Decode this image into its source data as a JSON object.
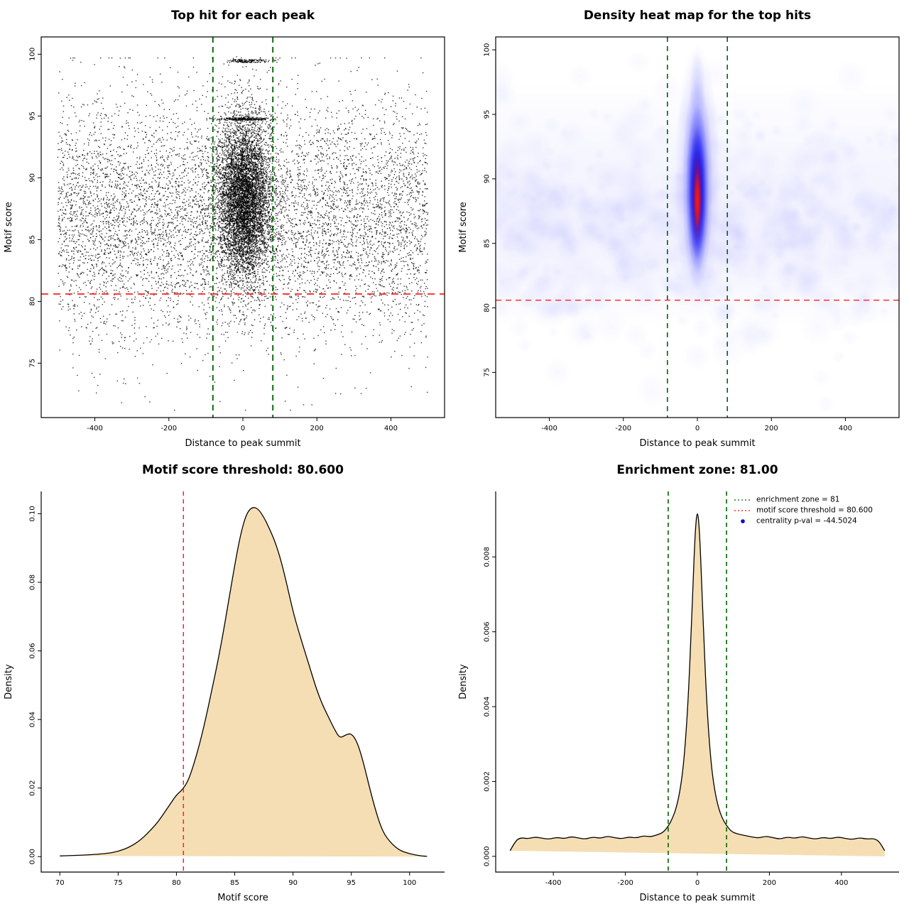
{
  "colors": {
    "red_line": "#ff2020",
    "green_line": "#006400",
    "area_fill": "#f5deb3",
    "heat_blue": "#0000ee",
    "heat_red": "#ff1a00",
    "point_blue": "#0000cc",
    "points": "#000000"
  },
  "chart_data": [
    {
      "type": "scatter",
      "title": "Top hit for each peak",
      "xlabel": "Distance to peak summit",
      "ylabel": "Motif score",
      "xlim": [
        -545,
        545
      ],
      "ylim": [
        70.6,
        101.4
      ],
      "xticks": [
        -400,
        -200,
        0,
        200,
        400
      ],
      "xtick_labels": [
        "-400",
        "-200",
        "0",
        "200",
        "400"
      ],
      "yticks": [
        75,
        80,
        85,
        90,
        95,
        100
      ],
      "ytick_labels": [
        "75",
        "80",
        "85",
        "90",
        "95",
        "100"
      ],
      "box": true,
      "point": {
        "color": "#000000",
        "size": 1.4,
        "alpha": 0.8
      },
      "seed": 11,
      "distribution": {
        "background": {
          "n": 7200,
          "x_min": -500,
          "x_max": 500,
          "y_mean": 86.8,
          "y_sd": 4.8,
          "y_min": 71.2,
          "y_max": 99.7
        },
        "cluster": {
          "n": 6200,
          "x_mean": 3,
          "x_sd": 36,
          "y_mean": 88.3,
          "y_sd": 3.3,
          "y_min": 77.5,
          "y_max": 99.8
        },
        "bands": [
          {
            "n": 160,
            "y": 99.45,
            "y_jit": 0.12,
            "x_mean": 15,
            "x_sd": 28
          },
          {
            "n": 240,
            "y": 94.75,
            "y_jit": 0.1,
            "x_mean": 5,
            "x_sd": 40
          }
        ]
      },
      "hline": {
        "y": 80.6,
        "color": "#ff2020",
        "dash": [
          10,
          7
        ],
        "width": 1.7
      },
      "vlines": [
        {
          "x": -81,
          "color": "#006400",
          "dash": [
            8,
            6
          ],
          "width": 1.9
        },
        {
          "x": 81,
          "color": "#006400",
          "dash": [
            8,
            6
          ],
          "width": 1.9
        }
      ]
    },
    {
      "type": "heatmap",
      "title": "Density heat map for the top hits",
      "xlabel": "Distance to peak summit",
      "ylabel": "Motif score",
      "xlim": [
        -545,
        545
      ],
      "ylim": [
        71.5,
        101
      ],
      "xticks": [
        -400,
        -200,
        0,
        200,
        400
      ],
      "xtick_labels": [
        "-400",
        "-200",
        "0",
        "200",
        "400"
      ],
      "yticks": [
        75,
        80,
        85,
        90,
        95,
        100
      ],
      "ytick_labels": [
        "75",
        "80",
        "85",
        "90",
        "95",
        "100"
      ],
      "box": true,
      "heat": {
        "band": {
          "seed": 7,
          "n": 480,
          "y_mean": 86.6,
          "y_sd": 4.4,
          "r_min": 7,
          "r_max": 26,
          "color": "#6060ff",
          "alpha": 0.045,
          "base_alpha": 0.06,
          "y_top": 97.5,
          "y_bottom": 78.5
        },
        "ellipses": [
          {
            "cx": 0,
            "cy": 90.0,
            "sx": 62,
            "sy": 10.5,
            "color": "#5050ff",
            "alpha": 0.28
          },
          {
            "cx": 0,
            "cy": 89.5,
            "sx": 42,
            "sy": 8.2,
            "color": "#2828ff",
            "alpha": 0.5
          },
          {
            "cx": 0,
            "cy": 89.2,
            "sx": 31,
            "sy": 6.6,
            "color": "#0a0aee",
            "alpha": 0.8
          },
          {
            "cx": 0,
            "cy": 88.9,
            "sx": 23,
            "sy": 5.2,
            "color": "#0000dd",
            "alpha": 0.92
          },
          {
            "cx": 0,
            "cy": 88.6,
            "sx": 14,
            "sy": 3.5,
            "color": "#dd1133",
            "alpha": 0.88
          },
          {
            "cx": 0,
            "cy": 88.3,
            "sx": 9.5,
            "sy": 2.3,
            "color": "#ff1a00",
            "alpha": 0.95
          },
          {
            "cx": 0,
            "cy": 96.8,
            "sx": 22,
            "sy": 3.2,
            "color": "#7070ff",
            "alpha": 0.22
          }
        ]
      },
      "hline": {
        "y": 80.6,
        "color": "#ff2020",
        "dash": [
          8,
          6
        ],
        "width": 1.4
      },
      "vlines": [
        {
          "x": -81,
          "color": "#006400",
          "dash": [
            7,
            6
          ],
          "width": 1.6
        },
        {
          "x": 81,
          "color": "#006400",
          "dash": [
            7,
            6
          ],
          "width": 1.6
        }
      ]
    },
    {
      "type": "area",
      "title": "Motif score threshold: 80.600",
      "xlabel": "Motif score",
      "ylabel": "Density",
      "xlim": [
        68.4,
        103
      ],
      "ylim": [
        -0.0045,
        0.1065
      ],
      "xticks": [
        70,
        75,
        80,
        85,
        90,
        95,
        100
      ],
      "xtick_labels": [
        "70",
        "75",
        "80",
        "85",
        "90",
        "95",
        "100"
      ],
      "yticks": [
        0,
        0.02,
        0.04,
        0.06,
        0.08,
        0.1
      ],
      "ytick_labels": [
        "0.00",
        "0.02",
        "0.04",
        "0.06",
        "0.08",
        "0.10"
      ],
      "box": false,
      "fill": "#f5deb3",
      "line_color": "#000000",
      "points": {
        "x": [
          70,
          72,
          74,
          75,
          76,
          77,
          78,
          78.5,
          79,
          79.5,
          80,
          80.5,
          81,
          81.5,
          82,
          82.5,
          83,
          83.5,
          84,
          84.5,
          85,
          85.5,
          86,
          86.5,
          87,
          87.5,
          88,
          88.5,
          89,
          89.5,
          90,
          90.5,
          91,
          91.5,
          92,
          92.5,
          93,
          93.5,
          94,
          94.5,
          95,
          95.5,
          96,
          96.5,
          97,
          97.5,
          98,
          99,
          100,
          101,
          101.5
        ],
        "y": [
          0.0002,
          0.0004,
          0.0009,
          0.0015,
          0.0028,
          0.005,
          0.0085,
          0.0105,
          0.013,
          0.0155,
          0.018,
          0.0195,
          0.022,
          0.027,
          0.033,
          0.04,
          0.048,
          0.056,
          0.065,
          0.075,
          0.085,
          0.094,
          0.1,
          0.102,
          0.1015,
          0.099,
          0.0955,
          0.0915,
          0.086,
          0.079,
          0.0715,
          0.0655,
          0.06,
          0.0545,
          0.049,
          0.0445,
          0.041,
          0.0375,
          0.0345,
          0.0355,
          0.036,
          0.0335,
          0.028,
          0.021,
          0.0145,
          0.009,
          0.0055,
          0.002,
          0.0008,
          0.0002,
          0.0001
        ]
      },
      "vlines": [
        {
          "x": 80.6,
          "color": "#ff2020",
          "dash": [
            6,
            5
          ],
          "width": 1.5
        }
      ]
    },
    {
      "type": "area",
      "title": "Enrichment zone: 81.00",
      "xlabel": "Distance to peak summit",
      "ylabel": "Density",
      "xlim": [
        -560,
        560
      ],
      "ylim": [
        -0.00042,
        0.00975
      ],
      "xticks": [
        -400,
        -200,
        0,
        200,
        400
      ],
      "xtick_labels": [
        "-400",
        "-200",
        "0",
        "200",
        "400"
      ],
      "yticks": [
        0,
        0.002,
        0.004,
        0.006,
        0.008
      ],
      "ytick_labels": [
        "0.000",
        "0.002",
        "0.004",
        "0.006",
        "0.008"
      ],
      "box": false,
      "fill": "#f5deb3",
      "line_color": "#000000",
      "points": {
        "x": [
          -520,
          -505,
          -490,
          -470,
          -450,
          -430,
          -410,
          -390,
          -370,
          -350,
          -330,
          -310,
          -290,
          -270,
          -250,
          -230,
          -210,
          -190,
          -170,
          -150,
          -130,
          -110,
          -95,
          -81,
          -70,
          -60,
          -50,
          -40,
          -32,
          -25,
          -18,
          -12,
          -6,
          0,
          6,
          12,
          18,
          25,
          32,
          40,
          50,
          60,
          70,
          81,
          95,
          110,
          130,
          150,
          170,
          190,
          210,
          230,
          250,
          270,
          290,
          310,
          330,
          350,
          370,
          390,
          410,
          430,
          450,
          470,
          490,
          505,
          520
        ],
        "y": [
          0.00015,
          0.00042,
          0.0005,
          0.00047,
          0.00052,
          0.00048,
          0.00046,
          0.00051,
          0.00047,
          0.00053,
          0.00049,
          0.00046,
          0.00052,
          0.00048,
          0.00054,
          0.0005,
          0.00047,
          0.00052,
          0.00049,
          0.00055,
          0.00052,
          0.00058,
          0.00064,
          0.0008,
          0.001,
          0.00125,
          0.00165,
          0.0023,
          0.0032,
          0.0043,
          0.0058,
          0.0073,
          0.0087,
          0.0093,
          0.0087,
          0.0073,
          0.0058,
          0.0043,
          0.0032,
          0.0023,
          0.00165,
          0.00125,
          0.001,
          0.00082,
          0.00066,
          0.0006,
          0.00056,
          0.00052,
          0.00049,
          0.00054,
          0.0005,
          0.00046,
          0.00052,
          0.00048,
          0.00053,
          0.00049,
          0.00046,
          0.00051,
          0.00047,
          0.00052,
          0.00048,
          0.00045,
          0.0005,
          0.00046,
          0.00048,
          0.0004,
          0.00015
        ]
      },
      "vlines": [
        {
          "x": -81,
          "color": "#006400",
          "dash": [
            6,
            5
          ],
          "width": 1.6
        },
        {
          "x": 81,
          "color": "#006400",
          "dash": [
            6,
            5
          ],
          "width": 1.6
        }
      ],
      "legend": {
        "items": [
          {
            "label": "enrichment zone = 81",
            "color": "#006400",
            "marker": "dotted-line"
          },
          {
            "label": "motif score threshold = 80.600",
            "color": "#ff0000",
            "marker": "dotted-line"
          },
          {
            "label": "centrality p-val = -44.5024",
            "color": "#0000cc",
            "marker": "dot"
          }
        ]
      }
    }
  ]
}
